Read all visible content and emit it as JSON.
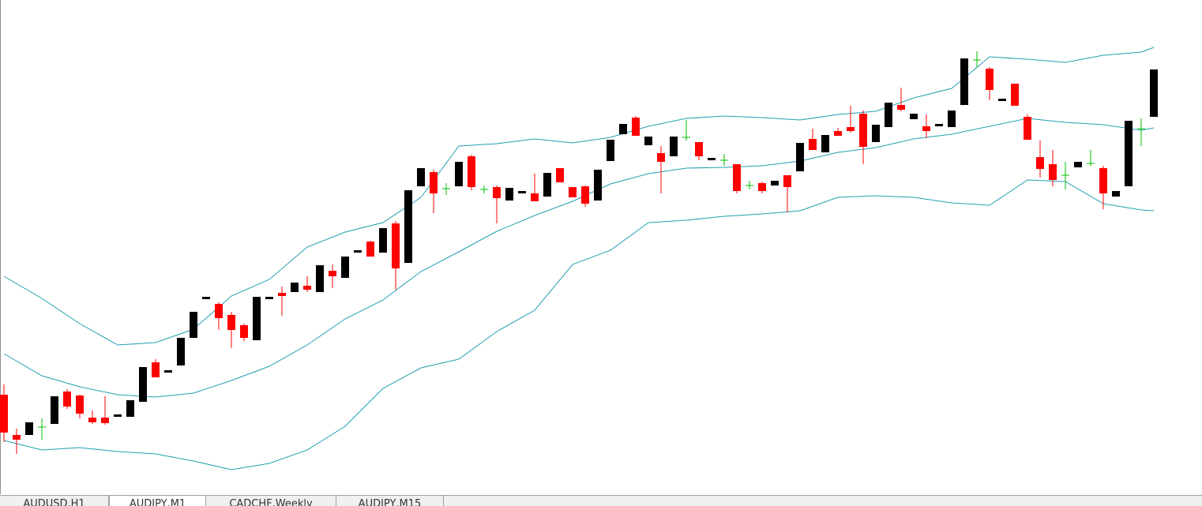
{
  "chart_data": {
    "type": "candlestick",
    "ylim": [
      0,
      625
    ],
    "up_color": "#000000",
    "down_color": "#ff0000",
    "doji_color": "#00c000",
    "open": [
      125,
      74,
      74,
      84,
      88,
      129,
      124,
      96,
      96,
      97,
      97,
      116,
      166,
      153,
      162,
      197,
      246,
      240,
      226,
      213,
      194,
      246,
      254,
      255,
      263,
      255,
      282,
      273,
      305,
      319,
      305,
      342,
      292,
      389,
      407,
      386,
      389,
      427,
      385,
      388,
      371,
      380,
      380,
      376,
      412,
      388,
      389,
      371,
      421,
      455,
      476,
      441,
      431,
      427,
      451,
      445,
      422,
      422,
      417,
      390,
      393,
      390,
      403,
      408,
      449,
      432,
      459,
      464,
      481,
      445,
      464,
      492,
      474,
      465,
      465,
      464,
      492,
      549,
      538,
      497,
      519,
      477,
      426,
      417,
      403,
      413,
      418,
      412,
      376,
      389,
      462,
      477
    ],
    "high": [
      138,
      82,
      90,
      95,
      123,
      132,
      125,
      105,
      123,
      100,
      118,
      160,
      170,
      156,
      197,
      230,
      249,
      242,
      230,
      215,
      249,
      249,
      262,
      267,
      275,
      289,
      290,
      300,
      308,
      320,
      336,
      345,
      384,
      412,
      410,
      393,
      420,
      429,
      390,
      390,
      387,
      383,
      405,
      406,
      412,
      388,
      390,
      410,
      448,
      468,
      478,
      452,
      440,
      452,
      473,
      445,
      425,
      430,
      417,
      396,
      395,
      396,
      403,
      444,
      462,
      454,
      463,
      491,
      485,
      467,
      495,
      514,
      481,
      480,
      468,
      485,
      551,
      560,
      540,
      500,
      519,
      480,
      447,
      435,
      420,
      420,
      435,
      415,
      383,
      472,
      475,
      537
    ],
    "low": [
      65,
      50,
      74,
      68,
      88,
      107,
      95,
      88,
      87,
      97,
      97,
      116,
      147,
      153,
      162,
      197,
      246,
      207,
      184,
      193,
      194,
      246,
      225,
      255,
      255,
      255,
      260,
      273,
      305,
      300,
      305,
      258,
      292,
      389,
      355,
      378,
      389,
      384,
      380,
      342,
      371,
      380,
      370,
      376,
      394,
      375,
      363,
      371,
      421,
      455,
      453,
      441,
      380,
      427,
      447,
      422,
      422,
      415,
      380,
      385,
      380,
      390,
      356,
      408,
      435,
      432,
      453,
      457,
      417,
      445,
      464,
      484,
      474,
      450,
      465,
      464,
      492,
      540,
      498,
      497,
      491,
      448,
      400,
      389,
      385,
      413,
      415,
      360,
      376,
      389,
      440,
      477
    ],
    "close": [
      77,
      68,
      90,
      84,
      123,
      110,
      101,
      90,
      89,
      100,
      118,
      160,
      147,
      156,
      197,
      230,
      249,
      222,
      207,
      197,
      249,
      249,
      250,
      267,
      258,
      289,
      275,
      300,
      308,
      300,
      336,
      285,
      384,
      412,
      380,
      386,
      420,
      388,
      385,
      374,
      387,
      383,
      370,
      406,
      394,
      375,
      367,
      410,
      448,
      468,
      453,
      452,
      420,
      452,
      451,
      427,
      425,
      422,
      383,
      390,
      383,
      396,
      388,
      444,
      435,
      454,
      453,
      459,
      439,
      467,
      495,
      486,
      481,
      459,
      468,
      485,
      551,
      549,
      511,
      500,
      491,
      448,
      411,
      397,
      403,
      420,
      418,
      380,
      383,
      472,
      462,
      537
    ],
    "bands": [
      {
        "color": "#20a0b0",
        "x": [
          0,
          3,
          6,
          9,
          12,
          15,
          18,
          21,
          24,
          27,
          30,
          33,
          36,
          39,
          42,
          45,
          48,
          51,
          54,
          57,
          60,
          63,
          66,
          69,
          72,
          75,
          78,
          81,
          84,
          87,
          90,
          91
        ],
        "values": [
          275,
          247,
          215,
          188,
          191,
          208,
          250,
          271,
          312,
          331,
          343,
          375,
          440,
          443,
          449,
          444,
          451,
          465,
          475,
          478,
          476,
          473,
          480,
          484,
          501,
          513,
          553,
          550,
          546,
          555,
          559,
          565
        ]
      },
      {
        "color": "#20a0b0",
        "x": [
          0,
          3,
          6,
          9,
          12,
          15,
          18,
          21,
          24,
          27,
          30,
          33,
          36,
          39,
          42,
          45,
          48,
          51,
          54,
          57,
          60,
          63,
          66,
          69,
          72,
          75,
          78,
          81,
          84,
          87,
          90,
          91
        ],
        "values": [
          177,
          149,
          135,
          125,
          122,
          127,
          143,
          161,
          188,
          221,
          245,
          281,
          306,
          332,
          352,
          370,
          392,
          405,
          412,
          413,
          415,
          421,
          432,
          438,
          449,
          455,
          465,
          475,
          470,
          467,
          460,
          463
        ]
      },
      {
        "color": "#20a0b0",
        "x": [
          0,
          3,
          6,
          9,
          12,
          15,
          18,
          21,
          24,
          27,
          30,
          33,
          36,
          39,
          42,
          45,
          48,
          51,
          54,
          57,
          60,
          63,
          66,
          69,
          72,
          75,
          78,
          81,
          84,
          87,
          90,
          91
        ],
        "values": [
          67,
          55,
          58,
          53,
          50,
          41,
          30,
          38,
          55,
          85,
          133,
          159,
          170,
          205,
          232,
          290,
          308,
          343,
          346,
          351,
          354,
          358,
          375,
          377,
          375,
          368,
          365,
          397,
          395,
          367,
          359,
          358
        ]
      }
    ]
  },
  "tabs": [
    "AUDUSD,H1",
    "AUDJPY,M1",
    "CADCHF,Weekly",
    "AUDJPY,M15"
  ],
  "active_tab": 1
}
